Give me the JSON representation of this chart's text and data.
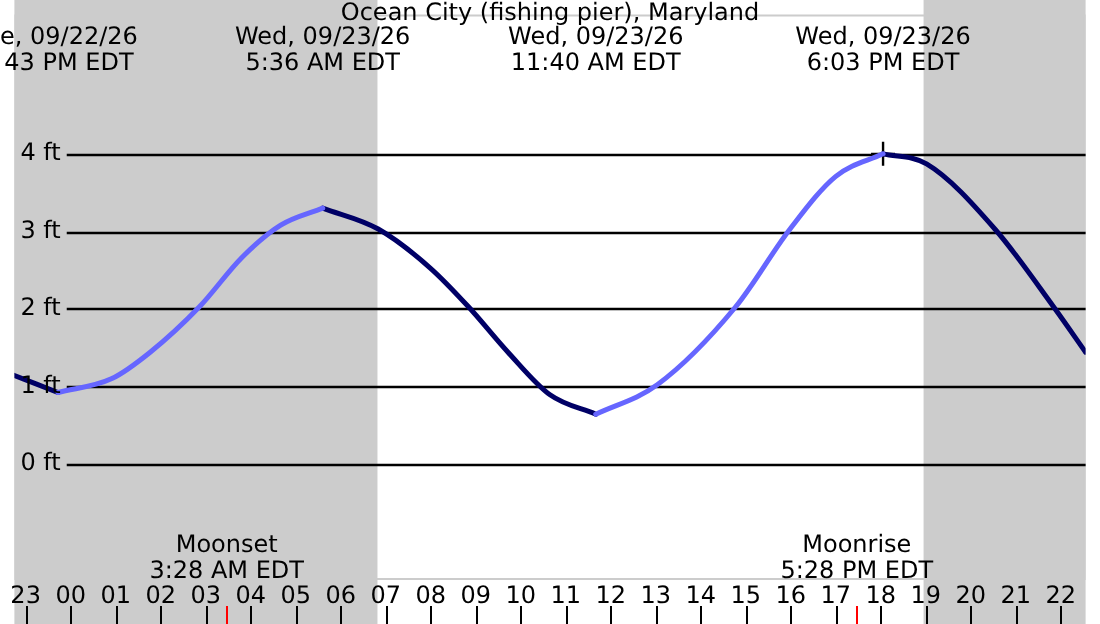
{
  "chart_data": {
    "type": "line",
    "title": "Ocean City (fishing pier), Maryland",
    "xlim": [
      "--09-22T22:45",
      "--09-23T22:33"
    ],
    "xticks": [
      {
        "value": "--09-22T23:00",
        "label": "23"
      },
      {
        "value": "--09-23T00:00",
        "label": "00"
      },
      {
        "value": "--09-23T01:00",
        "label": "01"
      },
      {
        "value": "--09-23T02:00",
        "label": "02"
      },
      {
        "value": "--09-23T03:00",
        "label": "03"
      },
      {
        "value": "--09-23T04:00",
        "label": "04"
      },
      {
        "value": "--09-23T05:00",
        "label": "05"
      },
      {
        "value": "--09-23T06:00",
        "label": "06"
      },
      {
        "value": "--09-23T07:00",
        "label": "07"
      },
      {
        "value": "--09-23T08:00",
        "label": "08"
      },
      {
        "value": "--09-23T09:00",
        "label": "09"
      },
      {
        "value": "--09-23T10:00",
        "label": "10"
      },
      {
        "value": "--09-23T11:00",
        "label": "11"
      },
      {
        "value": "--09-23T12:00",
        "label": "12"
      },
      {
        "value": "--09-23T13:00",
        "label": "13"
      },
      {
        "value": "--09-23T14:00",
        "label": "14"
      },
      {
        "value": "--09-23T15:00",
        "label": "15"
      },
      {
        "value": "--09-23T16:00",
        "label": "16"
      },
      {
        "value": "--09-23T17:00",
        "label": "17"
      },
      {
        "value": "--09-23T18:00",
        "label": "18"
      },
      {
        "value": "--09-23T19:00",
        "label": "19"
      },
      {
        "value": "--09-23T20:00",
        "label": "20"
      },
      {
        "value": "--09-23T21:00",
        "label": "21"
      },
      {
        "value": "--09-23T22:00",
        "label": "22"
      }
    ],
    "ylim": [
      -1.5,
      5.8
    ],
    "yticks": [
      {
        "value": 0,
        "label": "0 ft"
      },
      {
        "value": 1,
        "label": "1 ft"
      },
      {
        "value": 2,
        "label": "2 ft"
      },
      {
        "value": 3,
        "label": "3 ft"
      },
      {
        "value": 4,
        "label": "4 ft"
      }
    ],
    "grid": "y",
    "legend": false,
    "line_style": "solid",
    "series": [
      {
        "color": "#6666ff",
        "x": [
          "--09-22T23:43",
          "--09-23T00:55",
          "--09-23T01:46",
          "--09-23T02:52",
          "--09-23T03:48",
          "--09-23T04:40",
          "--09-23T05:36",
          "--09-23T08:30",
          "--09-23T11:40",
          "--09-23T13:02",
          "--09-23T14:46",
          "--09-23T15:59",
          "--09-23T17:00",
          "--09-23T18:03"
        ],
        "values": [
          0.92,
          1.1,
          1.44,
          2.03,
          2.66,
          3.08,
          3.3,
          null,
          0.64,
          1.02,
          2.02,
          3.03,
          3.71,
          4.0
        ]
      },
      {
        "color": "#000066",
        "x": [
          "--09-22T22:45",
          "--09-22T23:43",
          "--09-23T02:30",
          "--09-23T05:36",
          "--09-23T06:50",
          "--09-23T07:59",
          "--09-23T08:50",
          "--09-23T09:43",
          "--09-23T10:39",
          "--09-23T11:40",
          "--09-23T15:00",
          "--09-23T18:03",
          "--09-23T19:01",
          "--09-23T20:32",
          "--09-23T21:50",
          "--09-23T22:33"
        ],
        "values": [
          1.14,
          0.92,
          null,
          3.3,
          3.03,
          2.53,
          2.03,
          1.44,
          0.89,
          0.64,
          null,
          4.0,
          3.87,
          3.03,
          2.03,
          1.44
        ]
      },
      {
        "type": "scatter",
        "marker": "cross",
        "color": "#000000",
        "x": [
          "--09-23T18:03"
        ],
        "values": [
          4.0
        ]
      }
    ],
    "bands": [
      {
        "axis": "x",
        "from": "--09-22T22:45",
        "to": "--09-23T06:49",
        "color": "#cccccc"
      },
      {
        "axis": "x",
        "from": "--09-23T18:57",
        "to": "--09-23T22:33",
        "color": "#cccccc"
      }
    ],
    "ref_lines": [
      {
        "axis": "x",
        "value": "--09-23T03:28",
        "label": "Moonset\n3:28 AM EDT",
        "color": "#ff0000"
      },
      {
        "axis": "x",
        "value": "--09-23T17:28",
        "label": "Moonrise\n5:28 PM EDT",
        "color": "#ff0000"
      }
    ],
    "annotations": [
      "e, 09/22/26\n43 PM EDT",
      "Wed, 09/23/26\n5:36 AM EDT",
      "Wed, 09/23/26\n11:40 AM EDT",
      "Wed, 09/23/26\n6:03 PM EDT"
    ]
  }
}
